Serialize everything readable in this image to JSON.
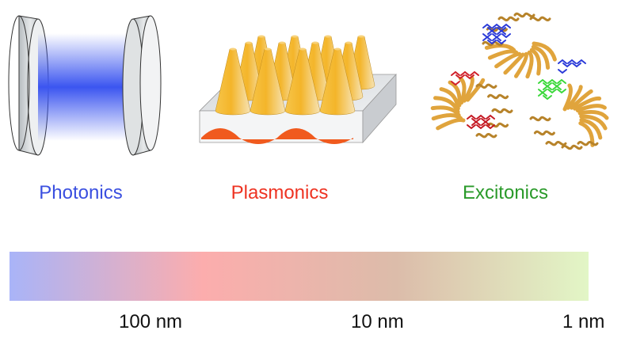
{
  "labels": {
    "photonics": "Photonics",
    "plasmonics": "Plasmonics",
    "excitonics": "Excitonics"
  },
  "colors": {
    "photonics": "#3a4fe0",
    "plasmonics": "#ee3322",
    "excitonics": "#2a9a2a",
    "beam": "#3b55f0",
    "cone": "#f4b52a",
    "wave": "#f05a1e",
    "protein": "#e0a43c"
  },
  "scale": {
    "gradient_stops": [
      "#a9b4f8",
      "#fcadad",
      "#dcbcaa",
      "#e2f6c6"
    ],
    "ticks": [
      "100 nm",
      "10 nm",
      "1 nm"
    ]
  }
}
